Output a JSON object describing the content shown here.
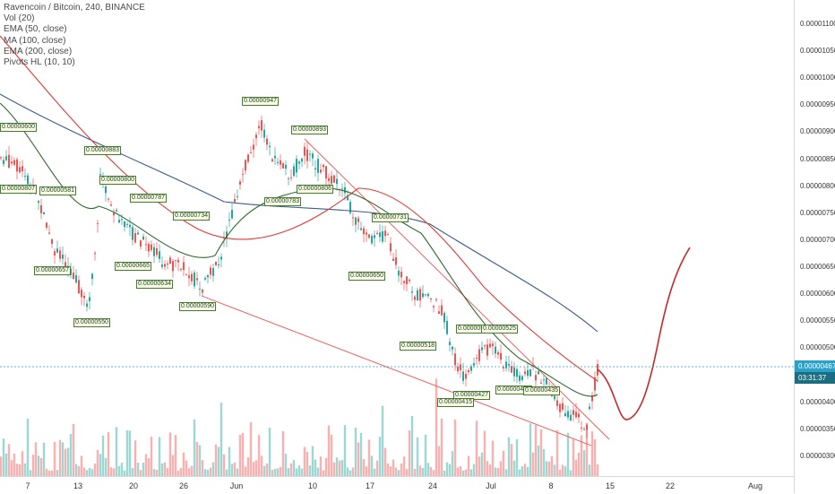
{
  "legend": {
    "symbol": "Ravencoin / Bitcoin, 240, BINANCE",
    "indicators": [
      "Vol (20)",
      "EMA (50, close)",
      "MA (100, close)",
      "EMA (200, close)",
      "Pivots HL (10, 10)"
    ]
  },
  "price_axis": {
    "ticks": [
      "0.00001100",
      "0.00001050",
      "0.00001000",
      "0.00000950",
      "0.00000900",
      "0.00000850",
      "0.00000800",
      "0.00000750",
      "0.00000700",
      "0.00000650",
      "0.00000600",
      "0.00000550",
      "0.00000500",
      "0.00000450",
      "0.00000400",
      "0.00000350",
      "0.00000300"
    ],
    "last_price": "0.00000467",
    "countdown": "03:31:37"
  },
  "time_axis": {
    "ticks": [
      "7",
      "13",
      "20",
      "26",
      "Jun",
      "10",
      "17",
      "24",
      "Jul",
      "8",
      "15",
      "22",
      "Aug"
    ]
  },
  "pivot_labels": [
    "0.00000947",
    "0.00000893",
    "0.00000883",
    "0.00000800",
    "0.00000787",
    "0.00000734",
    "0.00000731",
    "0.00000581",
    "0.00000807",
    "0.00000657",
    "0.00000665",
    "0.00000634",
    "0.00000590",
    "0.00000550",
    "0.00000783",
    "0.00000806",
    "0.00000650",
    "0.00000518",
    "0.00000527",
    "0.00000525",
    "0.00000427",
    "0.00000415",
    "0.00000431",
    "0.00000435",
    "0.00000600"
  ],
  "colors": {
    "up": "#26a69a",
    "down": "#ef5350",
    "ema50": "#2e6b2e",
    "ma100": "#e53935",
    "ema200": "#3b5a8c",
    "projection": "#c62828",
    "last_price_tag": "#2aa1c8",
    "countdown_tag": "#1a6e80"
  }
}
